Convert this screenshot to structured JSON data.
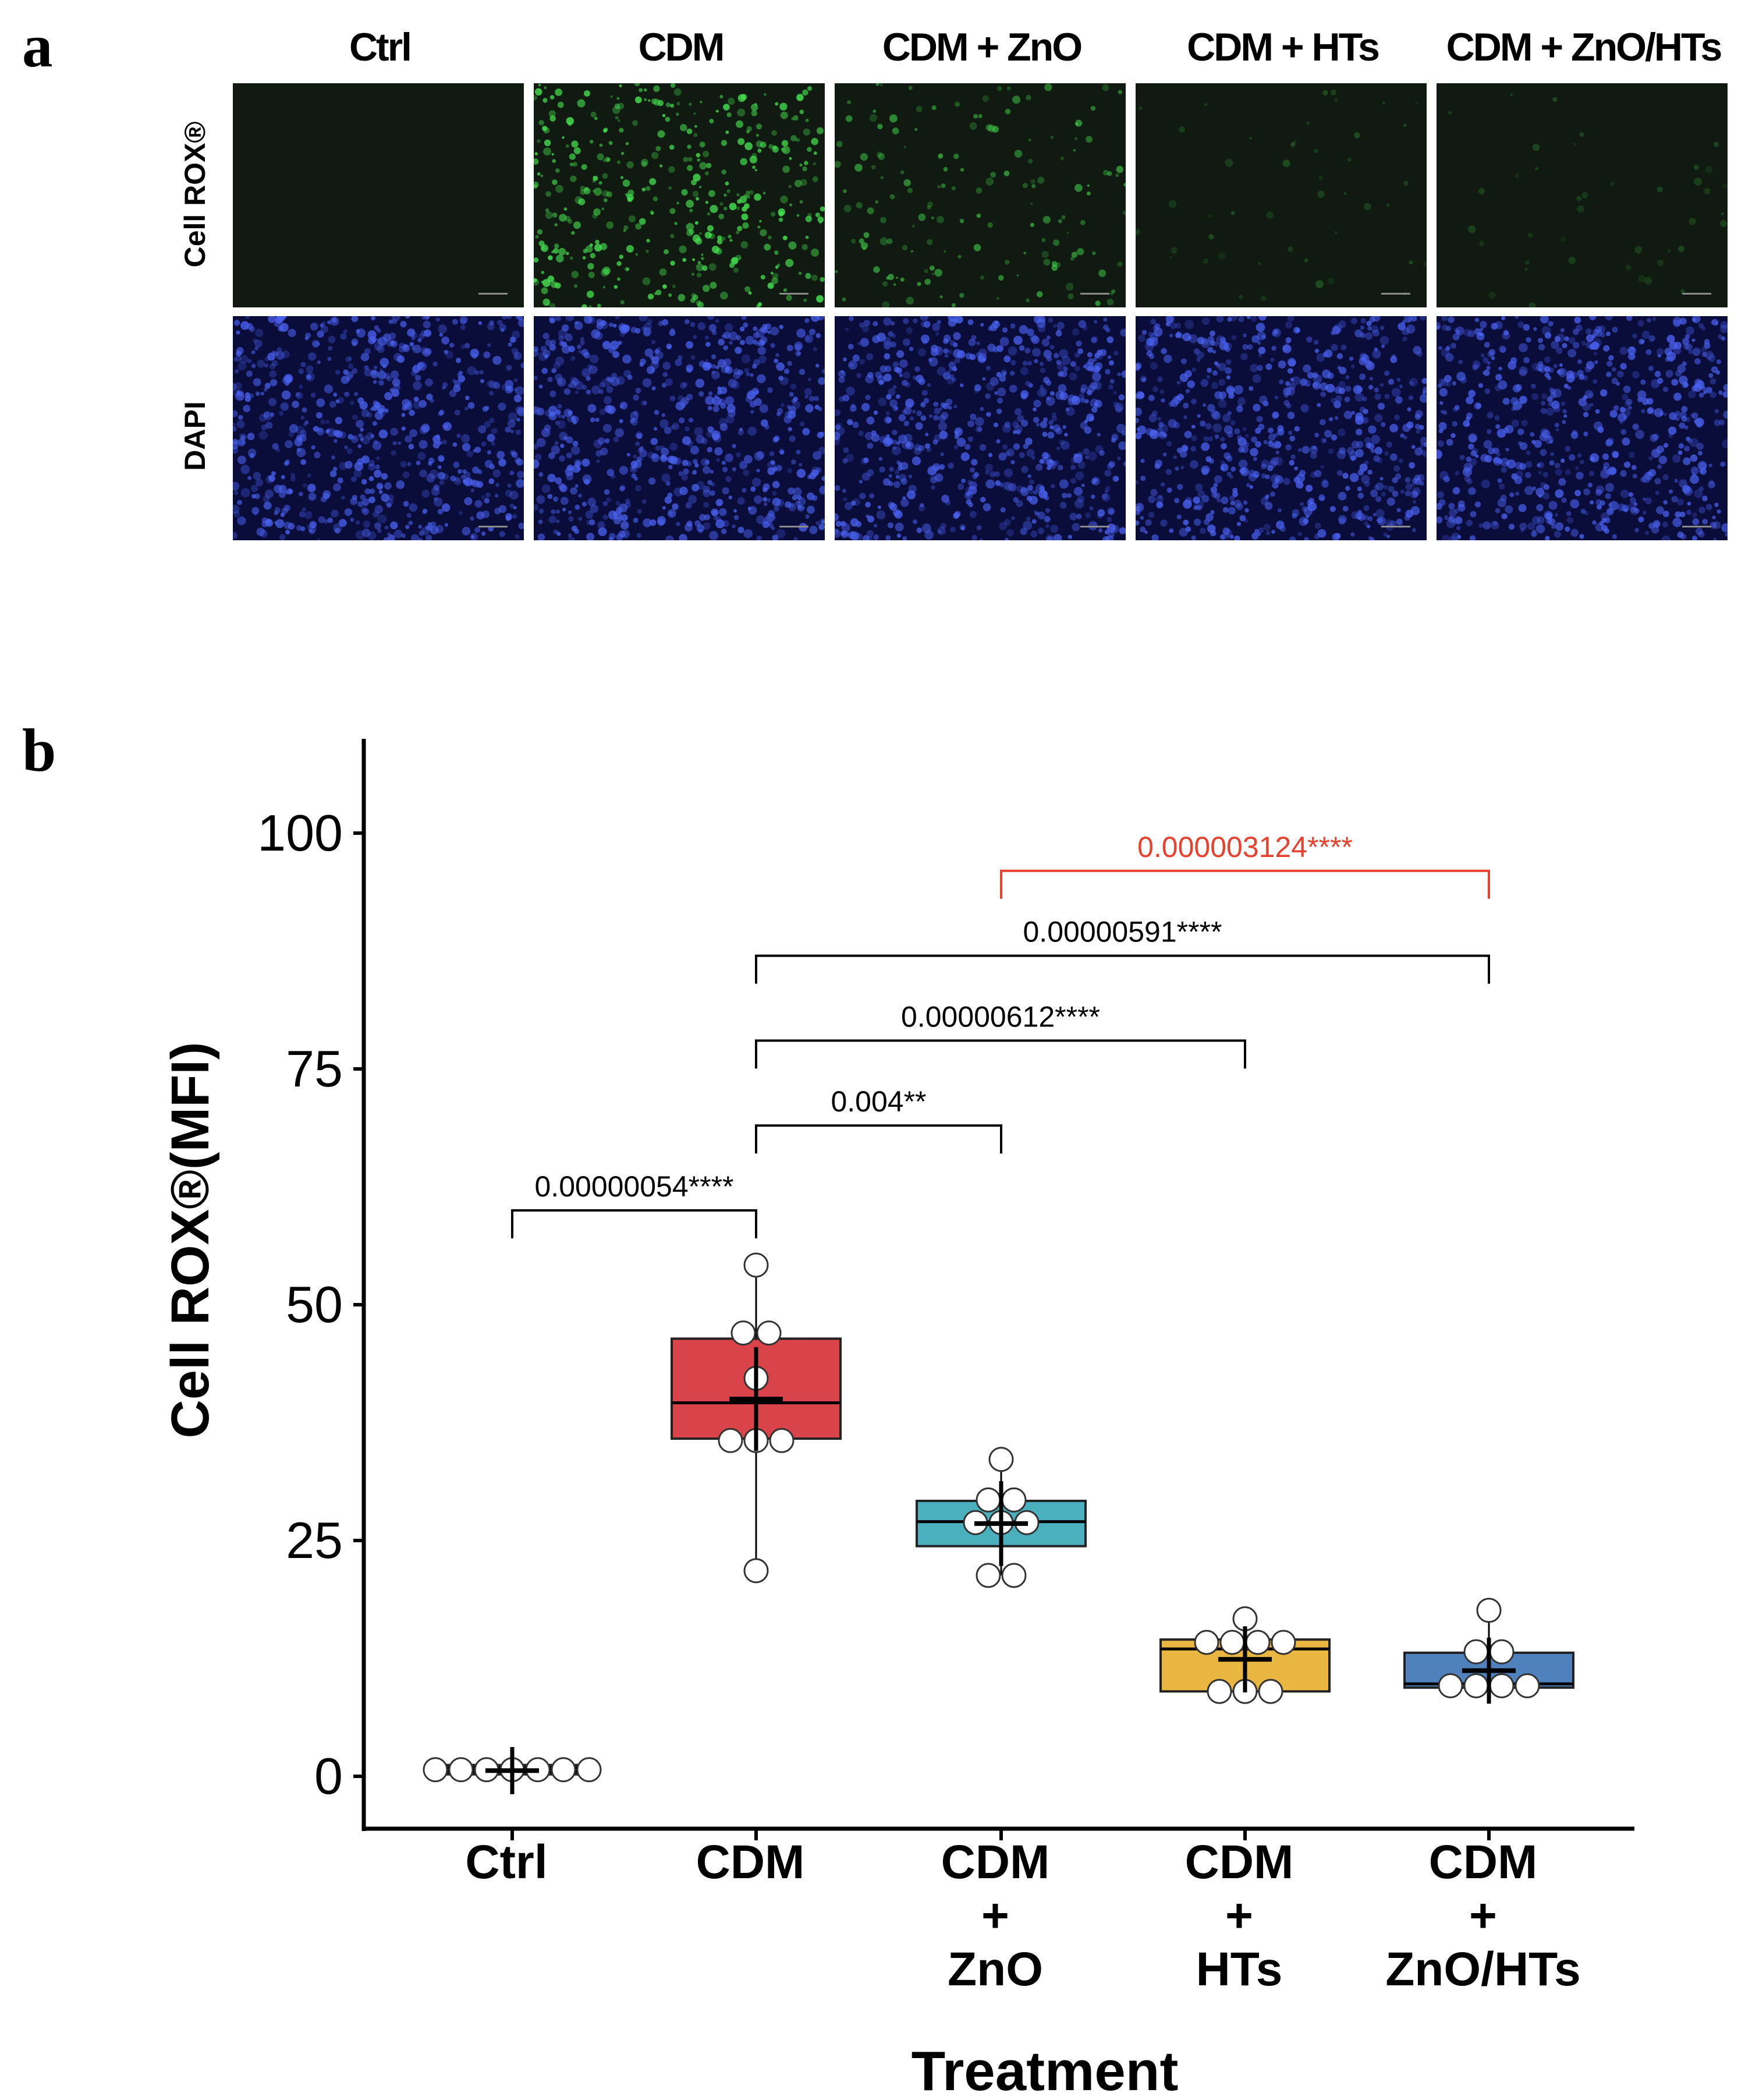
{
  "panel_a": {
    "letter": "a",
    "columns": [
      "Ctrl",
      "CDM",
      "CDM + ZnO",
      "CDM + HTs",
      "CDM + ZnO/HTs"
    ],
    "rows": [
      "Cell ROX®",
      "DAPI"
    ],
    "images": {
      "cellrox": [
        {
          "group": "Ctrl",
          "intensity": "very low",
          "tint": "#101a10"
        },
        {
          "group": "CDM",
          "intensity": "high",
          "tint": "#41d04a"
        },
        {
          "group": "CDM + ZnO",
          "intensity": "moderate",
          "tint": "#3fae45"
        },
        {
          "group": "CDM + HTs",
          "intensity": "low",
          "tint": "#2c5a30"
        },
        {
          "group": "CDM + ZnO/HTs",
          "intensity": "low",
          "tint": "#2c5a30"
        }
      ],
      "dapi": [
        {
          "group": "Ctrl",
          "tint": "#3b4fd8"
        },
        {
          "group": "CDM",
          "tint": "#3b4fd8"
        },
        {
          "group": "CDM + ZnO",
          "tint": "#3b4fd8"
        },
        {
          "group": "CDM + HTs",
          "tint": "#3b4fd8"
        },
        {
          "group": "CDM + ZnO/HTs",
          "tint": "#3b4fd8"
        }
      ]
    }
  },
  "panel_b": {
    "letter": "b"
  },
  "chart_data": {
    "type": "box",
    "title": "",
    "xlabel": "Treatment",
    "ylabel": "Cell ROX®(MFI)",
    "ylim": [
      -5,
      110
    ],
    "yticks": [
      0,
      25,
      50,
      75,
      100
    ],
    "grid": false,
    "categories": [
      "Ctrl",
      "CDM",
      "CDM + ZnO",
      "CDM + HTs",
      "CDM + ZnO/HTs"
    ],
    "category_lines": [
      [
        "Ctrl"
      ],
      [
        "CDM"
      ],
      [
        "CDM",
        "+",
        "ZnO"
      ],
      [
        "CDM",
        "+",
        "HTs"
      ],
      [
        "CDM",
        "+",
        "ZnO/HTs"
      ]
    ],
    "series": [
      {
        "name": "Ctrl",
        "color": "#000000",
        "q1": 0.2,
        "median": 0.6,
        "q3": 1.2,
        "whisker_low": 0,
        "whisker_high": 1.5,
        "mean": 0.6,
        "sd": 2.5,
        "points": [
          0.7,
          0.7,
          0.7,
          0.7,
          0.7,
          0.7,
          0.7
        ]
      },
      {
        "name": "CDM",
        "color": "#d9434a",
        "q1": 35.8,
        "median": 39.6,
        "q3": 46.4,
        "whisker_low": 21.8,
        "whisker_high": 54.2,
        "mean": 40.0,
        "sd": 5.5,
        "points": [
          54.2,
          47.0,
          47.0,
          42.2,
          35.6,
          35.6,
          35.6,
          21.8
        ]
      },
      {
        "name": "CDM + ZnO",
        "color": "#4ab0bd",
        "q1": 24.4,
        "median": 27.0,
        "q3": 29.2,
        "whisker_low": 21.3,
        "whisker_high": 33.6,
        "mean": 26.8,
        "sd": 4.5,
        "points": [
          33.6,
          29.3,
          29.3,
          26.9,
          26.9,
          26.9,
          21.3,
          21.3
        ]
      },
      {
        "name": "CDM + HTs",
        "color": "#e8b641",
        "q1": 9.0,
        "median": 13.5,
        "q3": 14.5,
        "whisker_low": 8.9,
        "whisker_high": 16.7,
        "mean": 12.4,
        "sd": 3.5,
        "points": [
          16.7,
          14.2,
          14.2,
          14.2,
          14.2,
          9.0,
          9.0,
          9.0
        ]
      },
      {
        "name": "CDM + ZnO/HTs",
        "color": "#4f81bd",
        "q1": 9.4,
        "median": 9.8,
        "q3": 13.1,
        "whisker_low": 9.4,
        "whisker_high": 17.6,
        "mean": 11.2,
        "sd": 3.5,
        "points": [
          17.6,
          13.2,
          13.2,
          9.6,
          9.6,
          9.6,
          9.6
        ]
      }
    ],
    "annotations": [
      {
        "from": "Ctrl",
        "to": "CDM",
        "y": 60,
        "label": "0.00000054****",
        "color": "#000000"
      },
      {
        "from": "CDM",
        "to": "CDM + ZnO",
        "y": 69,
        "label": "0.004**",
        "color": "#000000"
      },
      {
        "from": "CDM",
        "to": "CDM + HTs",
        "y": 78,
        "label": "0.00000612****",
        "color": "#000000"
      },
      {
        "from": "CDM",
        "to": "CDM + ZnO/HTs",
        "y": 87,
        "label": "0.00000591****",
        "color": "#000000"
      },
      {
        "from": "CDM + ZnO",
        "to": "CDM + ZnO/HTs",
        "y": 96,
        "label": "0.000003124****",
        "color": "#e8412d"
      }
    ]
  }
}
